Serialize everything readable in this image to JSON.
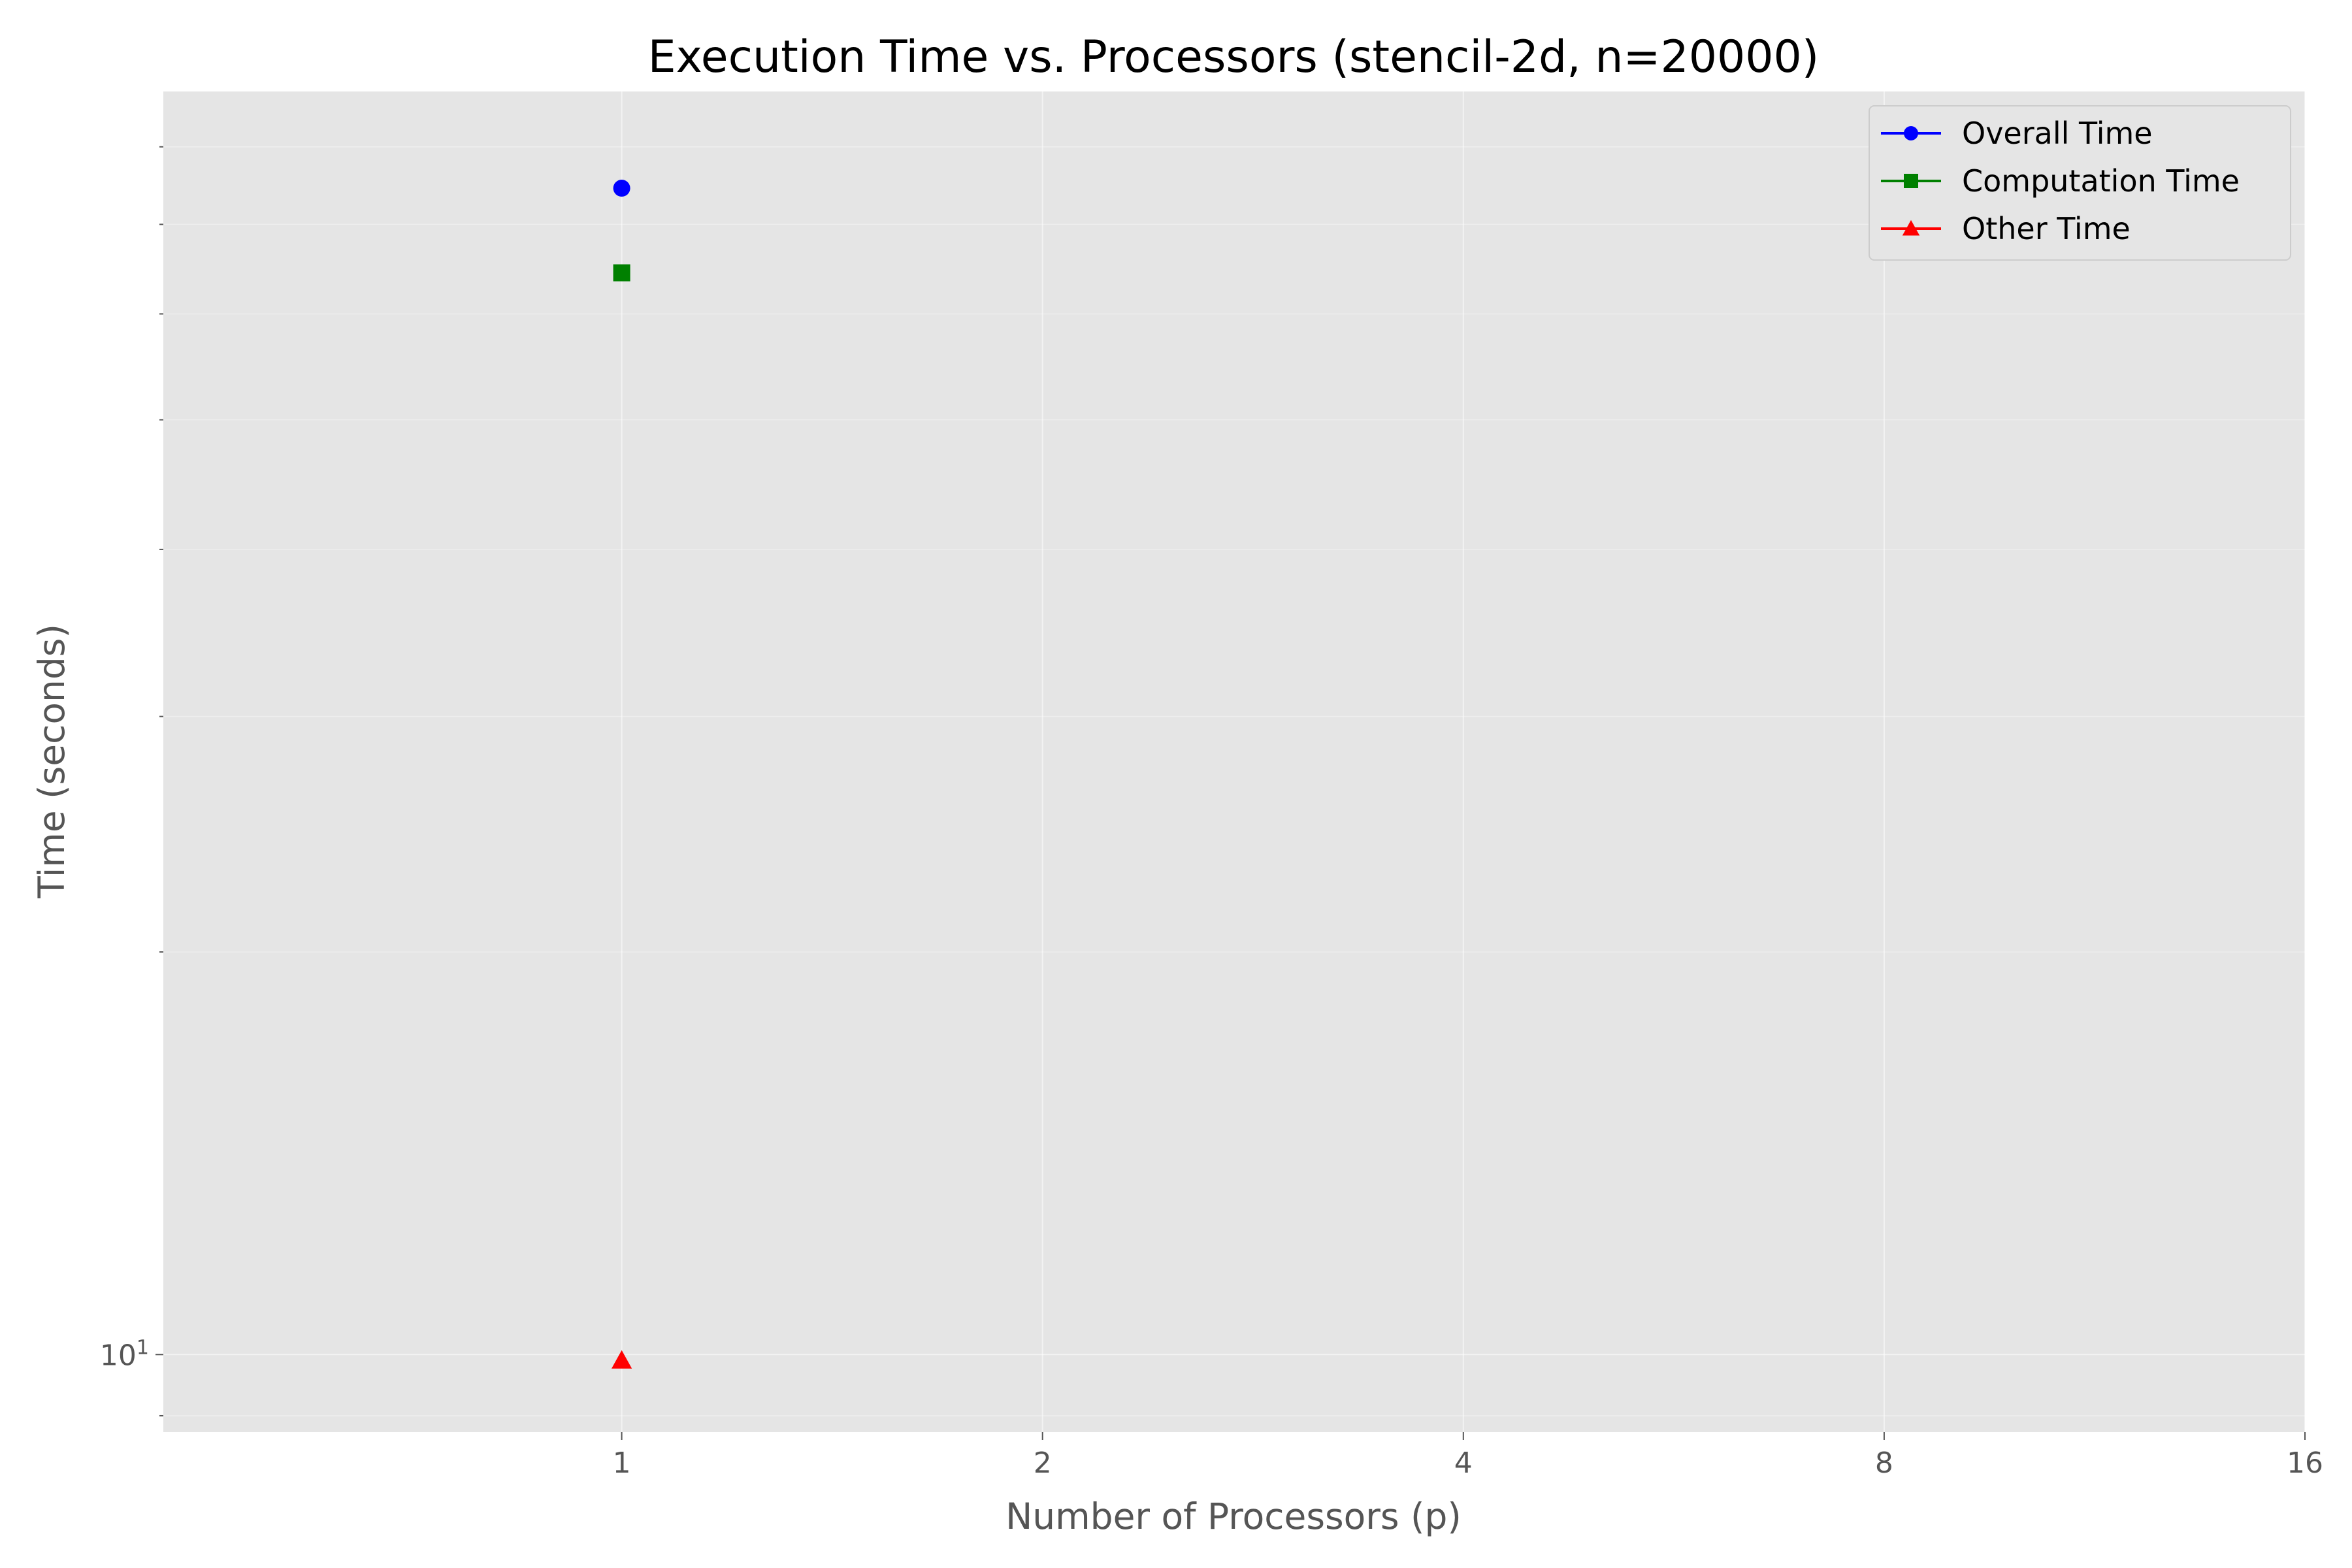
{
  "chart_data": {
    "type": "scatter",
    "title": "Execution Time vs. Processors (stencil-2d, n=20000)",
    "xlabel": "Number of Processors (p)",
    "ylabel": "Time (seconds)",
    "x_scale": "log2",
    "y_scale": "log10",
    "x_ticks": [
      1,
      2,
      4,
      8,
      16
    ],
    "x_tick_labels": [
      "1",
      "2",
      "4",
      "8",
      "16"
    ],
    "y_major_ticks": [
      10
    ],
    "y_minor_ticks": [
      9,
      20,
      30,
      40,
      50,
      60,
      70,
      80
    ],
    "xlim": [
      0.47,
      16
    ],
    "ylim": [
      8.75,
      88
    ],
    "y_tick_base": "10",
    "y_tick_exp": "1",
    "grid": true,
    "legend_position": "top-right",
    "series": [
      {
        "name": "Overall Time",
        "color": "#0000ff",
        "marker": "circle",
        "x": [
          1
        ],
        "y": [
          74.5
        ]
      },
      {
        "name": "Computation Time",
        "color": "#008000",
        "marker": "square",
        "x": [
          1
        ],
        "y": [
          64.4
        ]
      },
      {
        "name": "Other Time",
        "color": "#ff0000",
        "marker": "triangle",
        "x": [
          1
        ],
        "y": [
          9.9
        ]
      }
    ]
  }
}
